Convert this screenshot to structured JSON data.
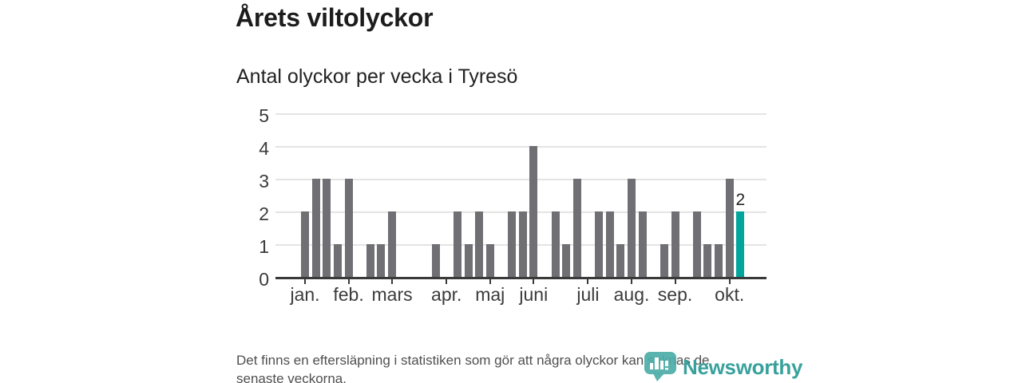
{
  "header": {
    "title": "Årets viltolyckor",
    "subtitle": "Antal olyckor per vecka i Tyresö"
  },
  "chart_data": {
    "type": "bar",
    "title": "Årets viltolyckor",
    "subtitle": "Antal olyckor per vecka i Tyresö",
    "x_unit": "vecka",
    "x_range": "januari–oktober",
    "values_by_week": [
      2,
      3,
      3,
      1,
      3,
      0,
      1,
      1,
      2,
      0,
      0,
      0,
      1,
      0,
      2,
      1,
      2,
      1,
      0,
      2,
      2,
      4,
      0,
      2,
      1,
      3,
      0,
      2,
      2,
      1,
      3,
      2,
      0,
      1,
      2,
      0,
      2,
      1,
      1,
      3,
      2
    ],
    "month_ticks": [
      {
        "label": "jan.",
        "week_index": 0
      },
      {
        "label": "feb.",
        "week_index": 4
      },
      {
        "label": "mars",
        "week_index": 8
      },
      {
        "label": "apr.",
        "week_index": 13
      },
      {
        "label": "maj",
        "week_index": 17
      },
      {
        "label": "juni",
        "week_index": 21
      },
      {
        "label": "juli",
        "week_index": 26
      },
      {
        "label": "aug.",
        "week_index": 30
      },
      {
        "label": "sep.",
        "week_index": 34
      },
      {
        "label": "okt.",
        "week_index": 39
      }
    ],
    "y_ticks": [
      0,
      1,
      2,
      3,
      4,
      5
    ],
    "ylim": [
      0,
      5
    ],
    "grid": "horizontal",
    "legend": "none",
    "highlight": {
      "index": 40,
      "value": 2,
      "label": "2",
      "color": "#00a69b"
    },
    "bar_color": "#6f6f74",
    "axis_color": "#3a3a3a",
    "gridline_color": "#e4e4e4"
  },
  "footer": {
    "note_lines": [
      "Det finns en eftersläpning i statistiken som gör att några olyckor kan saknas de",
      "senaste veckorna."
    ]
  },
  "logo": {
    "text": "Newsworthy",
    "color": "#38a19c",
    "badge_color": "#4cada8"
  }
}
